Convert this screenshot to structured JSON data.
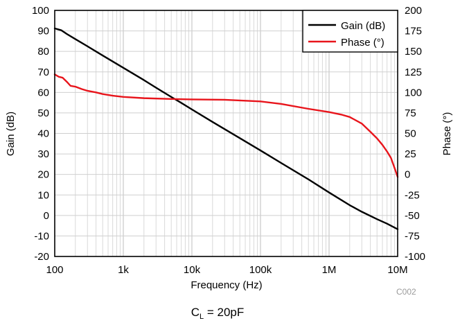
{
  "chart_data": {
    "type": "line",
    "xscale": "log",
    "xlabel": "Frequency (Hz)",
    "ylabel_left": "Gain (dB)",
    "ylabel_right": "Phase (°)",
    "xlim": [
      100,
      10000000
    ],
    "ylim_left": [
      -20,
      100
    ],
    "ylim_right": [
      -100,
      200
    ],
    "x_ticks": [
      {
        "value": 100,
        "label": "100"
      },
      {
        "value": 1000,
        "label": "1k"
      },
      {
        "value": 10000,
        "label": "10k"
      },
      {
        "value": 100000,
        "label": "100k"
      },
      {
        "value": 1000000,
        "label": "1M"
      },
      {
        "value": 10000000,
        "label": "10M"
      }
    ],
    "y_ticks_left": [
      100,
      90,
      80,
      70,
      60,
      50,
      40,
      30,
      20,
      10,
      0,
      -10,
      -20
    ],
    "y_ticks_right": [
      200,
      175,
      150,
      125,
      100,
      75,
      50,
      25,
      0,
      -25,
      -50,
      -75,
      -100
    ],
    "grid": true,
    "legend_position": "top-right",
    "series": [
      {
        "name": "Gain (dB)",
        "axis": "left",
        "color": "#000000",
        "points": [
          [
            100,
            91.2
          ],
          [
            125,
            90.3
          ],
          [
            150,
            88.5
          ],
          [
            200,
            86.0
          ],
          [
            300,
            82.5
          ],
          [
            500,
            78.0
          ],
          [
            1000,
            72.0
          ],
          [
            2000,
            66.0
          ],
          [
            3000,
            62.3
          ],
          [
            5000,
            57.8
          ],
          [
            7000,
            54.9
          ],
          [
            10000,
            51.7
          ],
          [
            20000,
            45.6
          ],
          [
            50000,
            37.7
          ],
          [
            100000,
            31.7
          ],
          [
            200000,
            25.6
          ],
          [
            500000,
            17.6
          ],
          [
            1000000,
            11.2
          ],
          [
            2000000,
            5.0
          ],
          [
            3000000,
            1.8
          ],
          [
            5000000,
            -1.8
          ],
          [
            7000000,
            -4.0
          ],
          [
            10000000,
            -6.7
          ]
        ]
      },
      {
        "name": "Phase (°)",
        "axis": "right",
        "color": "#e8141b",
        "points": [
          [
            100,
            122
          ],
          [
            115,
            119
          ],
          [
            130,
            118
          ],
          [
            150,
            113
          ],
          [
            170,
            108
          ],
          [
            200,
            107
          ],
          [
            250,
            104
          ],
          [
            300,
            102
          ],
          [
            400,
            100
          ],
          [
            500,
            98
          ],
          [
            700,
            96
          ],
          [
            1000,
            94.5
          ],
          [
            2000,
            93
          ],
          [
            5000,
            92
          ],
          [
            10000,
            91.5
          ],
          [
            30000,
            91
          ],
          [
            100000,
            89
          ],
          [
            200000,
            86
          ],
          [
            500000,
            80
          ],
          [
            1000000,
            76
          ],
          [
            1500000,
            73
          ],
          [
            2000000,
            70
          ],
          [
            3000000,
            62
          ],
          [
            4000000,
            52
          ],
          [
            5000000,
            44
          ],
          [
            6000000,
            36
          ],
          [
            7000000,
            28
          ],
          [
            8000000,
            20
          ],
          [
            9000000,
            8
          ],
          [
            10000000,
            -3
          ]
        ]
      }
    ],
    "annotations": [
      {
        "text": "C002"
      }
    ]
  },
  "caption": {
    "main": "C",
    "subscript": "L",
    "rest": " = 20pF"
  }
}
